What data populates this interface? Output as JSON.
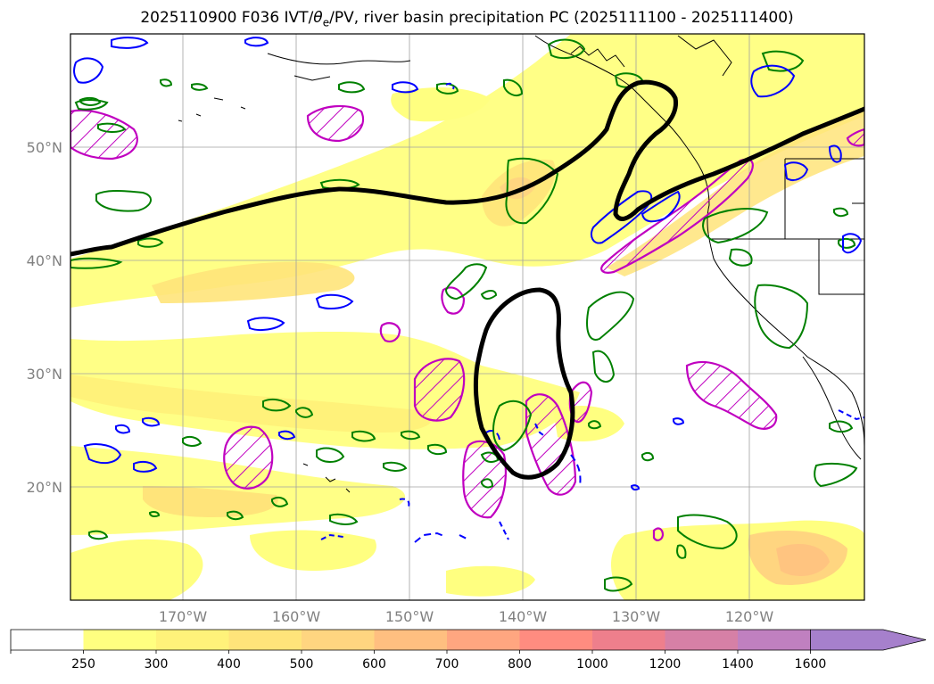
{
  "title": {
    "prefix": "2025110900 F036 IVT/",
    "theta": "θ",
    "theta_sub": "e",
    "suffix": "/PV, river basin precipitation PC (2025111100 - 2025111400)"
  },
  "map": {
    "latitude_labels": [
      "50°N",
      "40°N",
      "30°N",
      "20°N"
    ],
    "longitude_labels": [
      "170°W",
      "160°W",
      "150°W",
      "140°W",
      "130°W",
      "120°W"
    ]
  },
  "colorbar": {
    "ticks": [
      "250",
      "300",
      "400",
      "500",
      "600",
      "700",
      "800",
      "1000",
      "1200",
      "1400",
      "1600"
    ],
    "colors": [
      "#ffffff",
      "#ffff80",
      "#fff27a",
      "#ffe47a",
      "#ffd580",
      "#ffbf80",
      "#ffa680",
      "#ff8c80",
      "#ee7f8c",
      "#d680a6",
      "#c080c0",
      "#a680cc"
    ]
  },
  "legend_colors": {
    "pv_contour": "#000000",
    "theta_e_positive": "#008000",
    "theta_e_negative": "#0000ff",
    "precip_region": "#c000c0",
    "coastline": "#000000"
  }
}
